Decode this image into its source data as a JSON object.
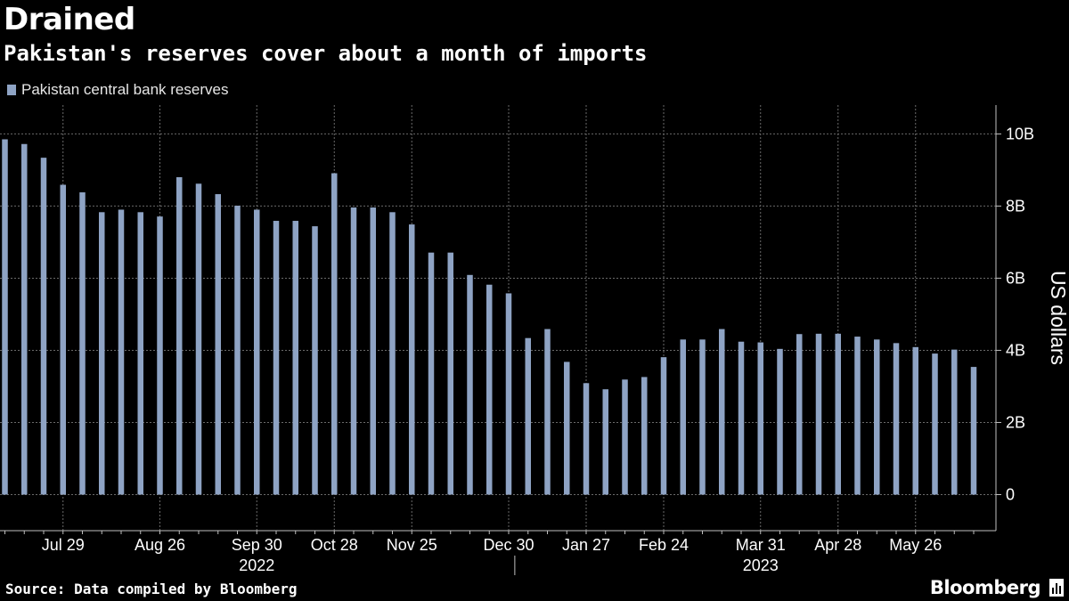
{
  "header": {
    "title": "Drained",
    "subtitle": "Pakistan's reserves cover about a month of imports"
  },
  "footer": {
    "source": "Source: Data compiled by Bloomberg",
    "brand": "Bloomberg"
  },
  "colors": {
    "background": "#000000",
    "bar": "#8ea3c4",
    "grid": "#6a6a6a",
    "text": "#ffffff"
  },
  "chart_data": {
    "type": "bar",
    "title": "Drained",
    "subtitle": "Pakistan's reserves cover about a month of imports",
    "legend": [
      "Pakistan central bank reserves"
    ],
    "legend_position": "top-left",
    "ylabel": "US dollars",
    "ylim": [
      -1,
      10.8
    ],
    "yticks": [
      {
        "value": 10,
        "label": "10B"
      },
      {
        "value": 8,
        "label": "8B"
      },
      {
        "value": 6,
        "label": "6B"
      },
      {
        "value": 4,
        "label": "4B"
      },
      {
        "value": 2,
        "label": "2B"
      },
      {
        "value": 0,
        "label": "0"
      }
    ],
    "y_axis_side": "right",
    "grid": true,
    "xticks": [
      {
        "index": 3,
        "label": "Jul 29"
      },
      {
        "index": 8,
        "label": "Aug 26"
      },
      {
        "index": 13,
        "label": "Sep 30"
      },
      {
        "index": 17,
        "label": "Oct 28"
      },
      {
        "index": 21,
        "label": "Nov 25"
      },
      {
        "index": 26,
        "label": "Dec 30"
      },
      {
        "index": 30,
        "label": "Jan 27"
      },
      {
        "index": 34,
        "label": "Feb 24"
      },
      {
        "index": 39,
        "label": "Mar 31"
      },
      {
        "index": 43,
        "label": "Apr 28"
      },
      {
        "index": 47,
        "label": "May 26"
      }
    ],
    "year_labels": [
      {
        "index": 13,
        "label": "2022"
      },
      {
        "index": 39,
        "label": "2023"
      }
    ],
    "year_divider_after_index": 26,
    "series": [
      {
        "name": "Pakistan central bank reserves",
        "unit": "billion USD",
        "values": [
          9.85,
          9.72,
          9.34,
          8.59,
          8.38,
          7.83,
          7.9,
          7.83,
          7.71,
          8.8,
          8.62,
          8.33,
          8.01,
          7.9,
          7.59,
          7.59,
          7.44,
          8.91,
          7.96,
          7.96,
          7.83,
          7.49,
          6.71,
          6.71,
          6.09,
          5.82,
          5.58,
          4.34,
          4.59,
          3.68,
          3.09,
          2.92,
          3.19,
          3.26,
          3.81,
          4.3,
          4.3,
          4.59,
          4.24,
          4.22,
          4.04,
          4.45,
          4.46,
          4.46,
          4.38,
          4.3,
          4.2,
          4.09,
          3.91,
          4.02,
          3.54
        ]
      }
    ]
  }
}
